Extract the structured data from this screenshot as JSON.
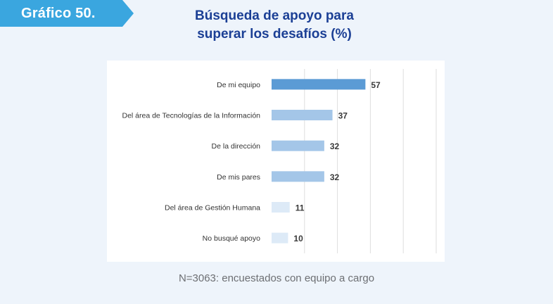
{
  "header": {
    "badge": "Gráfico 50.",
    "title_line1": "Búsqueda de apoyo para",
    "title_line2": "superar los desafíos (%)"
  },
  "footnote": "N=3063: encuestados con equipo a cargo",
  "colors": {
    "badge_bg": "#3aa6df",
    "title_text": "#1b3f95",
    "bar_dark": "#5b9bd5",
    "bar_medium": "#a4c6e8",
    "bar_light": "#ddeaf7",
    "value_text": "#3a3a3a"
  },
  "chart_data": {
    "type": "bar",
    "orientation": "horizontal",
    "categories": [
      "De mi equipo",
      "Del área de Tecnologías de la Información",
      "De la dirección",
      "De mis pares",
      "Del área de Gestión Humana",
      "No busqué apoyo"
    ],
    "values": [
      57,
      37,
      32,
      32,
      11,
      10
    ],
    "value_labels": [
      "57",
      "37",
      "32",
      "32",
      "11",
      "10"
    ],
    "xlim": [
      0,
      100
    ],
    "grid": true,
    "title": "Búsqueda de apoyo para superar los desafíos (%)",
    "xlabel": "",
    "ylabel": ""
  }
}
